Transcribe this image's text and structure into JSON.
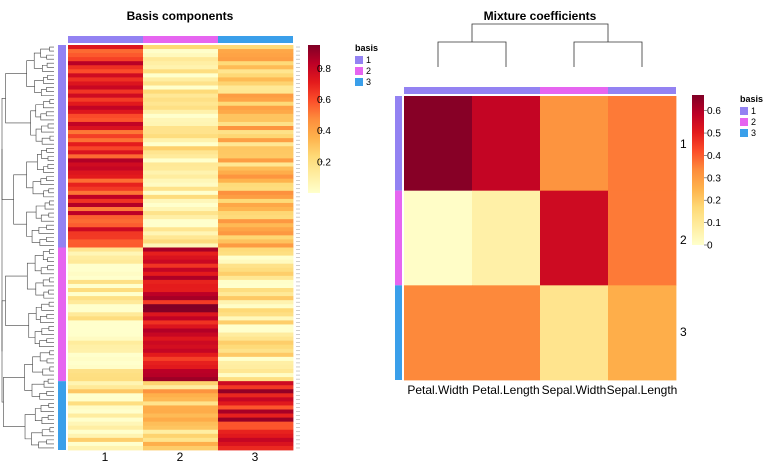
{
  "colors": {
    "basis_1": "#9382F2",
    "basis_2": "#E665F0",
    "basis_3": "#3A9FEA",
    "scale": [
      "#FFFFCC",
      "#FFEDA0",
      "#FED976",
      "#FEB24C",
      "#FD8D3C",
      "#FC4E2A",
      "#E31A1C",
      "#BD0026",
      "#800026"
    ]
  },
  "chart_data": [
    {
      "type": "heatmap",
      "title": "Basis components",
      "columns": [
        "1",
        "2",
        "3"
      ],
      "column_annotation": [
        "1",
        "2",
        "3"
      ],
      "row_groups": [
        {
          "basis": "1",
          "rows": 50,
          "col_means": [
            0.68,
            0.1,
            0.3
          ]
        },
        {
          "basis": "2",
          "rows": 33,
          "col_means": [
            0.05,
            0.8,
            0.12
          ]
        },
        {
          "basis": "3",
          "rows": 17,
          "col_means": [
            0.12,
            0.28,
            0.75
          ]
        }
      ],
      "colorbar": {
        "ticks": [
          "0.8",
          "0.6",
          "0.4",
          "0.2"
        ],
        "range": [
          0,
          0.95
        ]
      },
      "legend": {
        "title": "basis",
        "entries": [
          "1",
          "2",
          "3"
        ],
        "position": "right"
      },
      "row_dendrogram": "left"
    },
    {
      "type": "heatmap",
      "title": "Mixture coefficients",
      "columns": [
        "Petal.Width",
        "Petal.Length",
        "Sepal.Width",
        "Sepal.Length"
      ],
      "column_annotation": [
        "1",
        "1",
        "2",
        "1"
      ],
      "rows": [
        "1",
        "2",
        "3"
      ],
      "row_annotation": [
        "1",
        "2",
        "3"
      ],
      "values": [
        [
          0.66,
          0.57,
          0.32,
          0.36
        ],
        [
          0.01,
          0.07,
          0.55,
          0.36
        ],
        [
          0.34,
          0.34,
          0.12,
          0.26
        ]
      ],
      "colorbar": {
        "ticks": [
          "0.6",
          "0.5",
          "0.4",
          "0.3",
          "0.2",
          "0.1",
          "0"
        ],
        "range": [
          0,
          0.67
        ]
      },
      "legend": {
        "title": "basis",
        "entries": [
          "1",
          "2",
          "3"
        ],
        "position": "right"
      },
      "column_dendrogram": "top"
    }
  ]
}
